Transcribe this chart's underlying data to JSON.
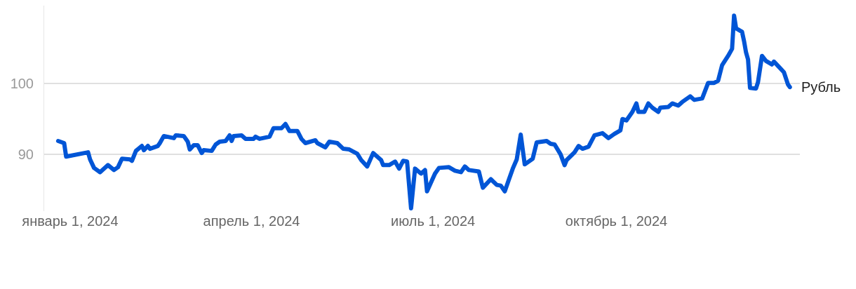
{
  "chart_data": {
    "type": "line",
    "x": [
      "2023-12-26",
      "2023-12-28",
      "2023-12-29",
      "2023-12-30",
      "2024-01-10",
      "2024-01-11",
      "2024-01-13",
      "2024-01-16",
      "2024-01-20",
      "2024-01-23",
      "2024-01-25",
      "2024-01-27",
      "2024-01-31",
      "2024-02-01",
      "2024-02-03",
      "2024-02-06",
      "2024-02-07",
      "2024-02-09",
      "2024-02-10",
      "2024-02-14",
      "2024-02-15",
      "2024-02-17",
      "2024-02-22",
      "2024-02-23",
      "2024-02-27",
      "2024-02-29",
      "2024-03-01",
      "2024-03-03",
      "2024-03-05",
      "2024-03-07",
      "2024-03-08",
      "2024-03-12",
      "2024-03-14",
      "2024-03-16",
      "2024-03-19",
      "2024-03-21",
      "2024-03-22",
      "2024-03-23",
      "2024-03-27",
      "2024-03-29",
      "2024-04-02",
      "2024-04-03",
      "2024-04-05",
      "2024-04-10",
      "2024-04-12",
      "2024-04-16",
      "2024-04-18",
      "2024-04-19",
      "2024-04-20",
      "2024-04-24",
      "2024-04-26",
      "2024-04-28",
      "2024-05-03",
      "2024-05-04",
      "2024-05-08",
      "2024-05-10",
      "2024-05-14",
      "2024-05-17",
      "2024-05-20",
      "2024-05-24",
      "2024-05-26",
      "2024-05-29",
      "2024-06-01",
      "2024-06-05",
      "2024-06-06",
      "2024-06-09",
      "2024-06-12",
      "2024-06-14",
      "2024-06-16",
      "2024-06-18",
      "2024-06-20",
      "2024-06-22",
      "2024-06-25",
      "2024-06-27",
      "2024-06-28",
      "2024-07-02",
      "2024-07-04",
      "2024-07-09",
      "2024-07-12",
      "2024-07-15",
      "2024-07-17",
      "2024-07-19",
      "2024-07-24",
      "2024-07-26",
      "2024-07-30",
      "2024-08-02",
      "2024-08-04",
      "2024-08-06",
      "2024-08-08",
      "2024-08-10",
      "2024-08-12",
      "2024-08-14",
      "2024-08-16",
      "2024-08-20",
      "2024-08-22",
      "2024-08-27",
      "2024-08-29",
      "2024-08-31",
      "2024-09-03",
      "2024-09-05",
      "2024-09-06",
      "2024-09-10",
      "2024-09-12",
      "2024-09-14",
      "2024-09-17",
      "2024-09-20",
      "2024-09-24",
      "2024-09-27",
      "2024-09-30",
      "2024-10-03",
      "2024-10-04",
      "2024-10-06",
      "2024-10-09",
      "2024-10-11",
      "2024-10-12",
      "2024-10-15",
      "2024-10-17",
      "2024-10-19",
      "2024-10-22",
      "2024-10-23",
      "2024-10-27",
      "2024-10-29",
      "2024-11-01",
      "2024-11-03",
      "2024-11-07",
      "2024-11-09",
      "2024-11-13",
      "2024-11-16",
      "2024-11-19",
      "2024-11-21",
      "2024-11-23",
      "2024-11-26",
      "2024-11-28",
      "2024-11-29",
      "2024-11-30",
      "2024-12-03",
      "2024-12-04",
      "2024-12-05",
      "2024-12-06",
      "2024-12-07",
      "2024-12-10",
      "2024-12-11",
      "2024-12-13",
      "2024-12-15",
      "2024-12-18",
      "2024-12-19",
      "2024-12-21",
      "2024-12-22",
      "2024-12-24",
      "2024-12-26",
      "2024-12-27"
    ],
    "series": [
      {
        "name": "Рубль",
        "color": "#0055d6",
        "values": [
          91.9,
          91.7,
          91.6,
          89.7,
          90.3,
          89.3,
          88.1,
          87.5,
          88.5,
          87.8,
          88.2,
          89.4,
          89.3,
          89.1,
          90.5,
          91.2,
          90.6,
          91.2,
          90.8,
          91.2,
          91.6,
          92.6,
          92.3,
          92.7,
          92.6,
          91.8,
          90.7,
          91.3,
          91.3,
          90.2,
          90.6,
          90.5,
          91.4,
          91.8,
          91.9,
          92.7,
          91.9,
          92.6,
          92.7,
          92.2,
          92.2,
          92.5,
          92.2,
          92.5,
          93.7,
          93.7,
          94.3,
          93.8,
          93.3,
          93.3,
          92.2,
          91.6,
          92.0,
          91.6,
          91.0,
          91.8,
          91.6,
          90.8,
          90.7,
          90.1,
          89.2,
          88.3,
          90.2,
          89.2,
          88.5,
          88.5,
          89.0,
          88.0,
          89.1,
          89.0,
          82.4,
          88.0,
          87.3,
          87.8,
          84.8,
          87.3,
          88.1,
          88.2,
          87.7,
          87.5,
          88.3,
          87.8,
          87.6,
          85.3,
          86.5,
          85.7,
          85.6,
          84.8,
          86.4,
          88.0,
          89.3,
          92.8,
          88.6,
          89.4,
          91.7,
          91.9,
          91.5,
          91.4,
          90.0,
          88.5,
          89.2,
          90.3,
          91.2,
          90.8,
          91.1,
          92.7,
          93.0,
          92.3,
          92.9,
          93.4,
          95.0,
          94.8,
          96.0,
          97.2,
          96.0,
          96.0,
          97.2,
          96.6,
          96.0,
          96.6,
          96.7,
          97.2,
          96.9,
          97.4,
          98.2,
          97.7,
          97.9,
          100.1,
          100.1,
          100.4,
          102.6,
          103.9,
          104.9,
          109.6,
          107.8,
          107.3,
          106.0,
          104.4,
          103.4,
          99.4,
          99.3,
          100.2,
          103.9,
          103.2,
          102.7,
          103.1,
          102.5,
          102.2,
          101.6,
          99.9,
          99.5
        ]
      }
    ],
    "xlim": [
      "2023-12-19",
      "2025-01-01"
    ],
    "xticks": [
      {
        "value": "2024-01-01",
        "label": "январь 1, 2024"
      },
      {
        "value": "2024-04-01",
        "label": "апрель 1, 2024"
      },
      {
        "value": "2024-07-01",
        "label": "июль 1, 2024"
      },
      {
        "value": "2024-10-01",
        "label": "октябрь 1, 2024"
      }
    ],
    "ylim": [
      82,
      111
    ],
    "yticks": [
      90,
      100
    ],
    "grid": "y",
    "legend": false,
    "marker": "none",
    "line_style": "solid"
  }
}
